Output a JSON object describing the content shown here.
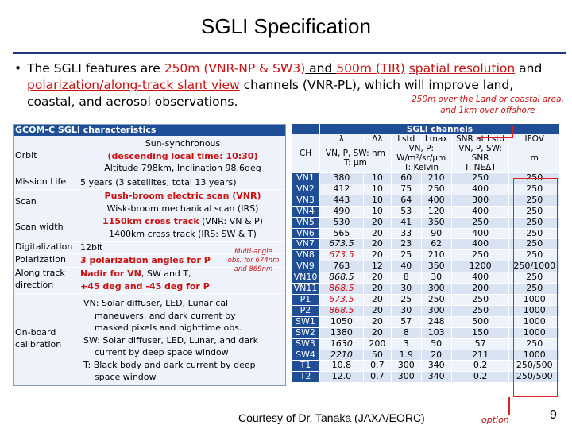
{
  "title": "SGLI Specification",
  "bullet": {
    "t1": "The SGLI features are ",
    "t2": "250m (VNR-NP & SW3)",
    "t3": " and ",
    "t4": "500m (TIR)",
    "t5": " ",
    "t6": "spatial resolution",
    "t7": " and ",
    "t8": "polarization/along-track slant view",
    "t9": " channels (VNR-PL), which will improve land, coastal, and aerosol observations."
  },
  "note_top": "250m over the Land or coastal area, and 1km over offshore",
  "left": {
    "header": "GCOM-C SGLI characteristics",
    "orbit_k": "Orbit",
    "orbit_v1": "Sun-synchronous",
    "orbit_v2": "(descending local time: 10:30)",
    "orbit_v3": "Altitude 798km, Inclination 98.6deg",
    "life_k": "Mission Life",
    "life_v": "5 years (3 satellites; total 13 years)",
    "scan_k": "Scan",
    "scan_v1": "Push-broom electric scan (VNR)",
    "scan_v2": "Wisk-broom mechanical scan (IRS)",
    "sw_k": "Scan width",
    "sw_v1a": "1150km cross track",
    "sw_v1b": " (VNR: VN & P)",
    "sw_v2": "1400km cross track (IRS: SW & T)",
    "dig_k": "Digitalization",
    "dig_v": "12bit",
    "pol_k": "Polarization",
    "pol_v": "3 polarization angles for P",
    "at_k1": "Along track",
    "at_k2": "direction",
    "at_v1a": "Nadir for VN",
    "at_v1b": ", SW and T,",
    "at_v2": "+45 deg and -45 deg for P",
    "cal_k1": "On-board",
    "cal_k2": "calibration",
    "cal_v1": "VN: Solar diffuser, LED, Lunar cal",
    "cal_v2": "maneuvers, and dark current by",
    "cal_v3": "masked pixels and nighttime obs.",
    "cal_v4": "SW: Solar diffuser, LED, Lunar, and dark",
    "cal_v5": "current by deep space window",
    "cal_v6": "T: Black body and dark current by deep",
    "cal_v7": "space window"
  },
  "note_mid": "Multi-angle obs. for 674nm and 869nm",
  "right": {
    "header": "SGLI channels",
    "col_lambda": "λ",
    "col_dlambda": "Δλ",
    "col_lstd": "Lstd",
    "col_lmax": "Lmax",
    "col_snr": "SNR at Lstd",
    "col_ifov": "IFOV",
    "sub_ch": "CH",
    "sub_unit1": "VN, P, SW: nm",
    "sub_unit2": "T: μm",
    "sub_l1": "VN, P:",
    "sub_l2": "W/m²/sr/μm",
    "sub_l3": "T: Kelvin",
    "sub_s1": "VN, P, SW:",
    "sub_s2": "SNR",
    "sub_s3": "T: NEΔT",
    "sub_ifov": "m",
    "rows": [
      {
        "ch": "VN1",
        "l": "380",
        "dl": "10",
        "ls": "60",
        "lm": "210",
        "snr": "250",
        "ifov": "250"
      },
      {
        "ch": "VN2",
        "l": "412",
        "dl": "10",
        "ls": "75",
        "lm": "250",
        "snr": "400",
        "ifov": "250"
      },
      {
        "ch": "VN3",
        "l": "443",
        "dl": "10",
        "ls": "64",
        "lm": "400",
        "snr": "300",
        "ifov": "250"
      },
      {
        "ch": "VN4",
        "l": "490",
        "dl": "10",
        "ls": "53",
        "lm": "120",
        "snr": "400",
        "ifov": "250"
      },
      {
        "ch": "VN5",
        "l": "530",
        "dl": "20",
        "ls": "41",
        "lm": "350",
        "snr": "250",
        "ifov": "250"
      },
      {
        "ch": "VN6",
        "l": "565",
        "dl": "20",
        "ls": "33",
        "lm": "90",
        "snr": "400",
        "ifov": "250"
      },
      {
        "ch": "VN7",
        "l": "673.5",
        "dl": "20",
        "ls": "23",
        "lm": "62",
        "snr": "400",
        "ifov": "250"
      },
      {
        "ch": "VN8",
        "l": "673.5",
        "dl": "20",
        "ls": "25",
        "lm": "210",
        "snr": "250",
        "ifov": "250"
      },
      {
        "ch": "VN9",
        "l": "763",
        "dl": "12",
        "ls": "40",
        "lm": "350",
        "snr": "1200",
        "ifov": "250/1000"
      },
      {
        "ch": "VN10",
        "l": "868.5",
        "dl": "20",
        "ls": "8",
        "lm": "30",
        "snr": "400",
        "ifov": "250"
      },
      {
        "ch": "VN11",
        "l": "868.5",
        "dl": "20",
        "ls": "30",
        "lm": "300",
        "snr": "200",
        "ifov": "250"
      },
      {
        "ch": "P1",
        "l": "673.5",
        "dl": "20",
        "ls": "25",
        "lm": "250",
        "snr": "250",
        "ifov": "1000"
      },
      {
        "ch": "P2",
        "l": "868.5",
        "dl": "20",
        "ls": "30",
        "lm": "300",
        "snr": "250",
        "ifov": "1000"
      },
      {
        "ch": "SW1",
        "l": "1050",
        "dl": "20",
        "ls": "57",
        "lm": "248",
        "snr": "500",
        "ifov": "1000"
      },
      {
        "ch": "SW2",
        "l": "1380",
        "dl": "20",
        "ls": "8",
        "lm": "103",
        "snr": "150",
        "ifov": "1000"
      },
      {
        "ch": "SW3",
        "l": "1630",
        "dl": "200",
        "ls": "3",
        "lm": "50",
        "snr": "57",
        "ifov": "250"
      },
      {
        "ch": "SW4",
        "l": "2210",
        "dl": "50",
        "ls": "1.9",
        "lm": "20",
        "snr": "211",
        "ifov": "1000"
      },
      {
        "ch": "T1",
        "l": "10.8",
        "dl": "0.7",
        "ls": "300",
        "lm": "340",
        "snr": "0.2",
        "ifov": "250/500"
      },
      {
        "ch": "T2",
        "l": "12.0",
        "dl": "0.7",
        "ls": "300",
        "lm": "340",
        "snr": "0.2",
        "ifov": "250/500"
      }
    ]
  },
  "footer": "Courtesy of Dr. Tanaka (JAXA/EORC)",
  "option": "option",
  "page_number": "9",
  "colors": {
    "accent_red": "#cc1111",
    "header_blue": "#1f4e96",
    "row_light": "#eef3fb",
    "row_dark": "#d9e3f1"
  }
}
